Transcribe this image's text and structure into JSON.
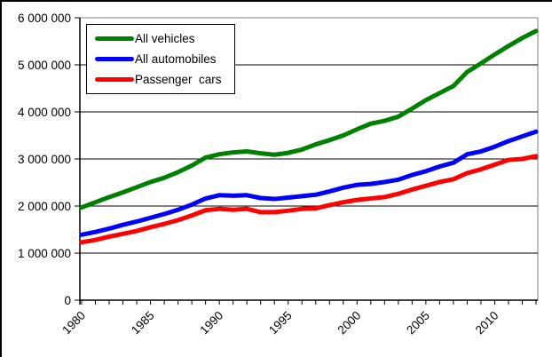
{
  "chart_data": {
    "type": "line",
    "title": "",
    "xlabel": "",
    "ylabel": "",
    "x": [
      1980,
      1981,
      1982,
      1983,
      1984,
      1985,
      1986,
      1987,
      1988,
      1989,
      1990,
      1991,
      1992,
      1993,
      1994,
      1995,
      1996,
      1997,
      1998,
      1999,
      2000,
      2001,
      2002,
      2003,
      2004,
      2005,
      2006,
      2007,
      2008,
      2009,
      2010,
      2011,
      2012,
      2013
    ],
    "x_tick_labels": [
      "1980",
      "1985",
      "1990",
      "1995",
      "2000",
      "2005",
      "2010"
    ],
    "x_label_rotation_deg": 45,
    "ylim": [
      0,
      6000000
    ],
    "y_tick_interval": 1000000,
    "y_tick_labels": [
      "0",
      "1 000 000",
      "2 000 000",
      "3 000 000",
      "4 000 000",
      "5 000 000",
      "6 000 000"
    ],
    "grid": "horizontal",
    "legend_position": "top-left-inside",
    "plot_border_color": "#808080",
    "axis_color": "#000000",
    "series": [
      {
        "name": "All vehicles",
        "color": "#008000",
        "values": [
          1970000,
          2080000,
          2190000,
          2290000,
          2400000,
          2510000,
          2600000,
          2720000,
          2860000,
          3030000,
          3100000,
          3140000,
          3160000,
          3120000,
          3090000,
          3130000,
          3200000,
          3310000,
          3400000,
          3500000,
          3630000,
          3750000,
          3810000,
          3900000,
          4070000,
          4250000,
          4400000,
          4550000,
          4850000,
          5030000,
          5220000,
          5400000,
          5570000,
          5720000
        ]
      },
      {
        "name": "All automobiles",
        "color": "#0000ff",
        "values": [
          1390000,
          1450000,
          1520000,
          1600000,
          1670000,
          1750000,
          1830000,
          1920000,
          2030000,
          2160000,
          2230000,
          2220000,
          2230000,
          2170000,
          2150000,
          2180000,
          2210000,
          2240000,
          2310000,
          2390000,
          2450000,
          2470000,
          2510000,
          2560000,
          2660000,
          2740000,
          2840000,
          2920000,
          3100000,
          3160000,
          3260000,
          3380000,
          3480000,
          3580000
        ]
      },
      {
        "name": "Passenger  cars",
        "color": "#ff0000",
        "values": [
          1230000,
          1280000,
          1350000,
          1410000,
          1470000,
          1550000,
          1620000,
          1700000,
          1800000,
          1910000,
          1940000,
          1920000,
          1940000,
          1870000,
          1870000,
          1900000,
          1940000,
          1950000,
          2020000,
          2080000,
          2130000,
          2160000,
          2190000,
          2260000,
          2350000,
          2430000,
          2510000,
          2570000,
          2700000,
          2780000,
          2880000,
          2980000,
          3000000,
          3060000
        ]
      }
    ]
  }
}
